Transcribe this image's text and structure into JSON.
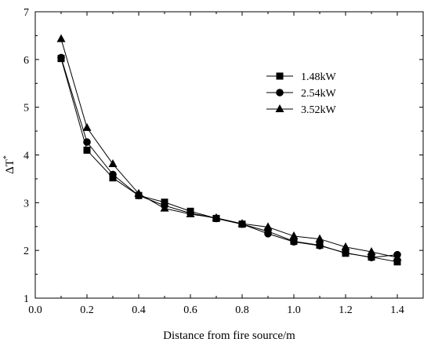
{
  "chart_data": {
    "type": "line",
    "xlabel": "Distance from fire source/m",
    "ylabel": "ΔT",
    "ylabel_superscript": "*",
    "xlim": [
      0.0,
      1.5
    ],
    "ylim": [
      1,
      7
    ],
    "xticks": [
      "0.0",
      "0.2",
      "0.4",
      "0.6",
      "0.8",
      "1.0",
      "1.2",
      "1.4"
    ],
    "yticks": [
      "1",
      "2",
      "3",
      "4",
      "5",
      "6",
      "7"
    ],
    "grid": false,
    "legend_position": "upper-right",
    "x": [
      0.1,
      0.2,
      0.3,
      0.4,
      0.5,
      0.6,
      0.7,
      0.8,
      0.9,
      1.0,
      1.1,
      1.2,
      1.3,
      1.4
    ],
    "series": [
      {
        "name": "1.48kW",
        "marker": "square",
        "values": [
          6.02,
          4.1,
          3.52,
          3.15,
          3.01,
          2.82,
          2.67,
          2.55,
          2.4,
          2.19,
          2.11,
          1.94,
          1.86,
          1.76
        ]
      },
      {
        "name": "2.54kW",
        "marker": "circle",
        "values": [
          6.04,
          4.27,
          3.59,
          3.15,
          2.94,
          2.78,
          2.67,
          2.55,
          2.35,
          2.18,
          2.1,
          1.95,
          1.85,
          1.91
        ]
      },
      {
        "name": "3.52kW",
        "marker": "triangle",
        "values": [
          6.43,
          4.57,
          3.81,
          3.19,
          2.88,
          2.76,
          2.68,
          2.56,
          2.49,
          2.3,
          2.24,
          2.07,
          1.97,
          1.85
        ]
      }
    ],
    "colors": {
      "line": "#000000",
      "marker": "#000000",
      "axis": "#000000"
    }
  }
}
